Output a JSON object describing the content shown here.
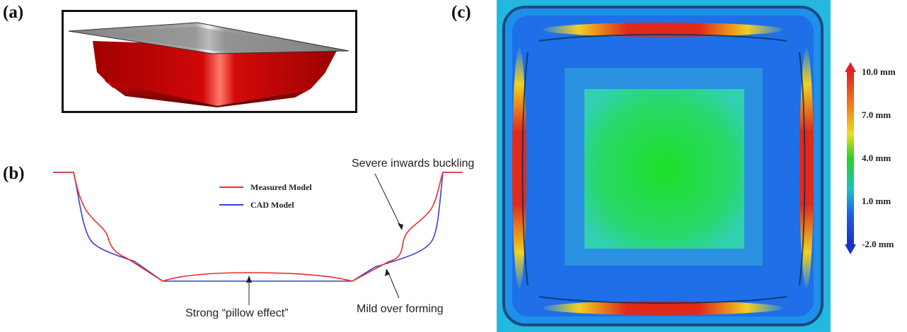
{
  "panels": {
    "a": {
      "letter": "(a)"
    },
    "b": {
      "letter": "(b)",
      "legend": [
        {
          "name": "Measured Model",
          "color": "#e8302a"
        },
        {
          "name": "CAD Model",
          "color": "#3a3fd8"
        }
      ],
      "annotations": {
        "buckling": "Severe inwards buckling",
        "pillow": "Strong “pillow effect”",
        "overforming": "Mild over forming"
      }
    },
    "c": {
      "letter": "(c)",
      "colorbar": {
        "labels": [
          "10.0 mm",
          "7.0 mm",
          "4.0 mm",
          "1.0 mm",
          "-2.0 mm"
        ],
        "values": [
          10.0,
          7.0,
          4.0,
          1.0,
          -2.0
        ],
        "min": -2.0,
        "max": 10.0,
        "gradient_colors": [
          "#e02020",
          "#f08a1a",
          "#e8e020",
          "#28d028",
          "#20c0c0",
          "#2060e8",
          "#1830c8"
        ]
      }
    }
  }
}
